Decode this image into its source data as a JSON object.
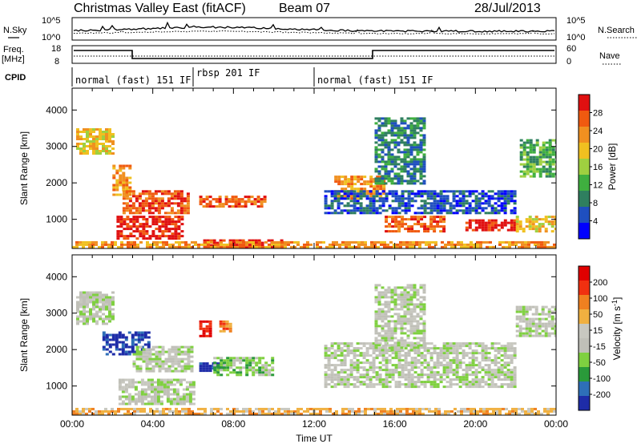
{
  "header": {
    "station": "Christmas Valley East (fitACF)",
    "beam": "Beam 07",
    "date": "28/Jul/2013"
  },
  "params_left": {
    "nsky_label": "N.Sky",
    "nsky_ticks": [
      "10^5",
      "10^0"
    ],
    "freq_label_1": "Freq.",
    "freq_label_2": "[MHz]",
    "freq_ticks": [
      "18",
      "8"
    ],
    "cpid_label": "CPID"
  },
  "params_right": {
    "nsearch_label": "N.Search",
    "nsearch_ticks": [
      "10^5",
      "10^0"
    ],
    "nave_label": "Nave",
    "nave_ticks": [
      "60",
      "0"
    ]
  },
  "cpid_segments": [
    {
      "label": "normal (fast) 151 IF",
      "start_h": 0,
      "end_h": 6
    },
    {
      "label": "rbsp 201 IF",
      "start_h": 6,
      "end_h": 12
    },
    {
      "label": "normal (fast) 151 IF",
      "start_h": 12,
      "end_h": 24
    }
  ],
  "colors": {
    "power": [
      "#0000ff",
      "#1f4fbf",
      "#2f7f5f",
      "#3faf3f",
      "#9fd040",
      "#f0c020",
      "#f09020",
      "#f05a10",
      "#e01010"
    ],
    "velocity": [
      "#1e2ca8",
      "#2e6fb8",
      "#2a9a3a",
      "#7fd040",
      "#c0c0b8",
      "#c8c8c0",
      "#f0b040",
      "#f08020",
      "#f03010",
      "#e00000"
    ]
  },
  "chart_data": [
    {
      "type": "heatmap",
      "panel": "power",
      "ylabel": "Slant Range [km]",
      "yticks": [
        1000,
        2000,
        3000,
        4000
      ],
      "ylim": [
        200,
        4600
      ],
      "xlim": [
        0,
        24
      ],
      "colorbar": {
        "label": "Power [dB]",
        "ticks": [
          "28",
          "24",
          "20",
          "16",
          "12",
          "8",
          "4"
        ]
      },
      "features": [
        {
          "t0": 0.2,
          "t1": 2.0,
          "r0": 2800,
          "r1": 3500,
          "level": 5
        },
        {
          "t0": 2.0,
          "t1": 2.8,
          "r0": 1700,
          "r1": 2500,
          "level": 6
        },
        {
          "t0": 2.5,
          "t1": 5.8,
          "r0": 1200,
          "r1": 1800,
          "level": 7
        },
        {
          "t0": 2.2,
          "t1": 5.5,
          "r0": 500,
          "r1": 1100,
          "level": 8
        },
        {
          "t0": 6.3,
          "t1": 9.5,
          "r0": 1350,
          "r1": 1650,
          "level": 7
        },
        {
          "t0": 6.5,
          "t1": 10.5,
          "r0": 250,
          "r1": 450,
          "level": 8
        },
        {
          "t0": 13.0,
          "t1": 15.5,
          "r0": 1600,
          "r1": 2200,
          "level": 6
        },
        {
          "t0": 15.5,
          "t1": 18.5,
          "r0": 700,
          "r1": 1100,
          "level": 7
        },
        {
          "t0": 19.5,
          "t1": 22.0,
          "r0": 700,
          "r1": 1000,
          "level": 8
        },
        {
          "t0": 22.0,
          "t1": 24.0,
          "r0": 700,
          "r1": 1100,
          "level": 5
        },
        {
          "t0": 12.5,
          "t1": 22.0,
          "r0": 1200,
          "r1": 1800,
          "level": 1
        },
        {
          "t0": 15.0,
          "t1": 17.5,
          "r0": 2000,
          "r1": 3800,
          "level": 2
        },
        {
          "t0": 22.2,
          "t1": 24.0,
          "r0": 2200,
          "r1": 3200,
          "level": 3
        },
        {
          "t0": 0.0,
          "t1": 24.0,
          "r0": 200,
          "r1": 400,
          "level": 6
        }
      ]
    },
    {
      "type": "heatmap",
      "panel": "velocity",
      "ylabel": "Slant Range [km]",
      "yticks": [
        1000,
        2000,
        3000,
        4000
      ],
      "ylim": [
        200,
        4600
      ],
      "xlim": [
        0,
        24
      ],
      "xlabel": "Time UT",
      "xticks": [
        "00:00",
        "04:00",
        "08:00",
        "12:00",
        "16:00",
        "20:00",
        "00:00"
      ],
      "colorbar": {
        "label": "Velocity [m s^-1]",
        "ticks": [
          "200",
          "100",
          "50",
          "15",
          "-15",
          "-50",
          "-100",
          "-200"
        ]
      },
      "features": [
        {
          "t0": 0.2,
          "t1": 2.0,
          "r0": 2700,
          "r1": 3600,
          "level": 4
        },
        {
          "t0": 1.5,
          "t1": 3.8,
          "r0": 1900,
          "r1": 2500,
          "level": 0
        },
        {
          "t0": 3.0,
          "t1": 6.0,
          "r0": 1400,
          "r1": 2100,
          "level": 4
        },
        {
          "t0": 2.3,
          "t1": 6.0,
          "r0": 500,
          "r1": 1200,
          "level": 4
        },
        {
          "t0": 6.3,
          "t1": 7.5,
          "r0": 1450,
          "r1": 1650,
          "level": 0
        },
        {
          "t0": 7.0,
          "t1": 10.0,
          "r0": 1300,
          "r1": 1800,
          "level": 3
        },
        {
          "t0": 6.3,
          "t1": 6.8,
          "r0": 2400,
          "r1": 2800,
          "level": 9
        },
        {
          "t0": 7.3,
          "t1": 7.8,
          "r0": 2500,
          "r1": 2800,
          "level": 7
        },
        {
          "t0": 12.5,
          "t1": 22.0,
          "r0": 1000,
          "r1": 2200,
          "level": 4
        },
        {
          "t0": 15.0,
          "t1": 17.5,
          "r0": 2000,
          "r1": 3800,
          "level": 4
        },
        {
          "t0": 22.0,
          "t1": 24.0,
          "r0": 2400,
          "r1": 3200,
          "level": 4
        },
        {
          "t0": 0.0,
          "t1": 24.0,
          "r0": 200,
          "r1": 400,
          "level": 6
        }
      ]
    }
  ]
}
